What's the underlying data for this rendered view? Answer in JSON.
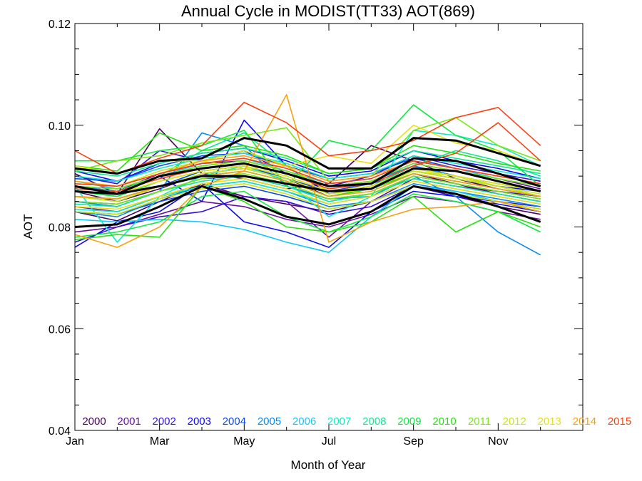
{
  "chart_data": {
    "type": "line",
    "title": "Annual Cycle in MODIST(TT33) AOT(869)",
    "xlabel": "Month of Year",
    "ylabel": "AOT",
    "x": [
      1,
      2,
      3,
      4,
      5,
      6,
      7,
      8,
      9,
      10,
      11,
      12
    ],
    "xlim": [
      1,
      13
    ],
    "ylim": [
      0.04,
      0.12
    ],
    "x_ticks": [
      {
        "value": 1,
        "label": "Jan"
      },
      {
        "value": 3,
        "label": "Mar"
      },
      {
        "value": 5,
        "label": "May"
      },
      {
        "value": 7,
        "label": "Jul"
      },
      {
        "value": 9,
        "label": "Sep"
      },
      {
        "value": 11,
        "label": "Nov"
      }
    ],
    "y_ticks": [
      {
        "value": 0.04,
        "label": "0.04"
      },
      {
        "value": 0.06,
        "label": "0.06"
      },
      {
        "value": 0.08,
        "label": "0.08"
      },
      {
        "value": 0.1,
        "label": "0.10"
      },
      {
        "value": 0.12,
        "label": "0.12"
      }
    ],
    "y_minor_step": 0.005,
    "legend_placement": "bottom",
    "series": [
      {
        "name": "2000",
        "color": "#4b0060",
        "lines": [
          [
            0.0905,
            0.0865,
            0.0993,
            0.0905,
            0.0895,
            0.0875,
            0.0885,
            0.096,
            0.093,
            0.0895,
            0.0875,
            0.086
          ],
          [
            0.083,
            0.0812,
            0.085,
            0.0885,
            0.086,
            0.0845,
            0.083,
            0.085,
            0.088,
            0.086,
            0.084,
            0.0825
          ],
          [
            0.087,
            0.085,
            0.0875,
            0.0905,
            0.0915,
            0.0895,
            0.086,
            0.0875,
            0.0905,
            0.0885,
            0.0865,
            0.085
          ]
        ]
      },
      {
        "name": "2001",
        "color": "#6a0fa0",
        "lines": [
          [
            0.084,
            0.083,
            0.086,
            0.088,
            0.086,
            0.085,
            0.078,
            0.085,
            0.0895,
            0.088,
            0.087,
            0.0855
          ],
          [
            0.088,
            0.087,
            0.0905,
            0.0925,
            0.093,
            0.091,
            0.088,
            0.089,
            0.0925,
            0.091,
            0.0895,
            0.0875
          ],
          [
            0.079,
            0.08,
            0.0825,
            0.085,
            0.084,
            0.0815,
            0.08,
            0.0825,
            0.086,
            0.085,
            0.083,
            0.0815
          ]
        ]
      },
      {
        "name": "2002",
        "color": "#3a10d8",
        "lines": [
          [
            0.077,
            0.08,
            0.082,
            0.083,
            0.086,
            0.085,
            0.0825,
            0.084,
            0.088,
            0.086,
            0.085,
            0.084
          ],
          [
            0.09,
            0.0885,
            0.095,
            0.093,
            0.095,
            0.0905,
            0.088,
            0.09,
            0.094,
            0.092,
            0.0905,
            0.089
          ],
          [
            0.085,
            0.0845,
            0.087,
            0.0895,
            0.09,
            0.088,
            0.0855,
            0.0865,
            0.09,
            0.0885,
            0.087,
            0.086
          ]
        ]
      },
      {
        "name": "2003",
        "color": "#0a0af0",
        "lines": [
          [
            0.076,
            0.081,
            0.083,
            0.0885,
            0.081,
            0.079,
            0.076,
            0.083,
            0.087,
            0.086,
            0.0845,
            0.083
          ],
          [
            0.088,
            0.0875,
            0.09,
            0.085,
            0.101,
            0.092,
            0.0865,
            0.088,
            0.092,
            0.09,
            0.088,
            0.087
          ],
          [
            0.091,
            0.089,
            0.0925,
            0.0945,
            0.0955,
            0.093,
            0.09,
            0.091,
            0.095,
            0.093,
            0.0915,
            0.0895
          ]
        ]
      },
      {
        "name": "2004",
        "color": "#0a4af5",
        "lines": [
          [
            0.086,
            0.0855,
            0.088,
            0.091,
            0.092,
            0.0895,
            0.087,
            0.0885,
            0.091,
            0.0895,
            0.088,
            0.086
          ],
          [
            0.083,
            0.0825,
            0.085,
            0.087,
            0.088,
            0.086,
            0.0835,
            0.085,
            0.088,
            0.0865,
            0.085,
            0.0835
          ],
          [
            0.0895,
            0.089,
            0.092,
            0.094,
            0.0945,
            0.092,
            0.0895,
            0.0905,
            0.0935,
            0.0915,
            0.09,
            0.0885
          ]
        ]
      },
      {
        "name": "2005",
        "color": "#0a8af0",
        "lines": [
          [
            0.085,
            0.084,
            0.087,
            0.0985,
            0.096,
            0.088,
            0.0855,
            0.086,
            0.09,
            0.086,
            0.079,
            0.0745
          ],
          [
            0.088,
            0.087,
            0.09,
            0.092,
            0.093,
            0.091,
            0.088,
            0.089,
            0.092,
            0.09,
            0.0885,
            0.087
          ],
          [
            0.083,
            0.082,
            0.0855,
            0.088,
            0.089,
            0.087,
            0.084,
            0.085,
            0.0885,
            0.087,
            0.0855,
            0.084
          ]
        ]
      },
      {
        "name": "2006",
        "color": "#10c8f8",
        "lines": [
          [
            0.0815,
            0.081,
            0.0815,
            0.081,
            0.0795,
            0.077,
            0.075,
            0.082,
            0.088,
            0.087,
            0.085,
            0.083
          ],
          [
            0.089,
            0.0875,
            0.09,
            0.0925,
            0.0935,
            0.091,
            0.0885,
            0.0895,
            0.093,
            0.0915,
            0.0895,
            0.088
          ],
          [
            0.086,
            0.085,
            0.088,
            0.09,
            0.091,
            0.089,
            0.086,
            0.0875,
            0.0905,
            0.089,
            0.0875,
            0.086
          ]
        ]
      },
      {
        "name": "2007",
        "color": "#10e8c8",
        "lines": [
          [
            0.088,
            0.077,
            0.086,
            0.09,
            0.092,
            0.089,
            0.082,
            0.086,
            0.099,
            0.098,
            0.096,
            0.092
          ],
          [
            0.09,
            0.089,
            0.0915,
            0.0935,
            0.0945,
            0.0925,
            0.0895,
            0.0905,
            0.094,
            0.0925,
            0.091,
            0.0895
          ],
          [
            0.0835,
            0.083,
            0.086,
            0.088,
            0.089,
            0.087,
            0.0845,
            0.086,
            0.089,
            0.0875,
            0.086,
            0.0845
          ]
        ]
      },
      {
        "name": "2008",
        "color": "#10e890",
        "lines": [
          [
            0.0875,
            0.087,
            0.09,
            0.095,
            0.0985,
            0.092,
            0.087,
            0.088,
            0.092,
            0.095,
            0.093,
            0.09
          ],
          [
            0.0845,
            0.084,
            0.087,
            0.089,
            0.09,
            0.088,
            0.085,
            0.0865,
            0.0895,
            0.088,
            0.0865,
            0.085
          ],
          [
            0.091,
            0.09,
            0.0925,
            0.0945,
            0.0955,
            0.0935,
            0.0905,
            0.0915,
            0.095,
            0.0935,
            0.092,
            0.0905
          ]
        ]
      },
      {
        "name": "2009",
        "color": "#10e840",
        "lines": [
          [
            0.093,
            0.093,
            0.095,
            0.096,
            0.099,
            0.088,
            0.097,
            0.095,
            0.104,
            0.098,
            0.095,
            0.088
          ],
          [
            0.078,
            0.079,
            0.081,
            0.086,
            0.087,
            0.082,
            0.079,
            0.082,
            0.0865,
            0.085,
            0.083,
            0.079
          ],
          [
            0.087,
            0.086,
            0.089,
            0.091,
            0.092,
            0.09,
            0.087,
            0.088,
            0.0915,
            0.09,
            0.0885,
            0.087
          ]
        ]
      },
      {
        "name": "2010",
        "color": "#28e010",
        "lines": [
          [
            0.0775,
            0.0785,
            0.078,
            0.088,
            0.085,
            0.08,
            0.079,
            0.081,
            0.086,
            0.079,
            0.083,
            0.08
          ],
          [
            0.086,
            0.0855,
            0.088,
            0.09,
            0.091,
            0.089,
            0.086,
            0.0875,
            0.0905,
            0.089,
            0.0875,
            0.086
          ],
          [
            0.092,
            0.091,
            0.0985,
            0.095,
            0.096,
            0.094,
            0.0905,
            0.0915,
            0.096,
            0.0945,
            0.0925,
            0.091
          ]
        ]
      },
      {
        "name": "2011",
        "color": "#78e810",
        "lines": [
          [
            0.091,
            0.093,
            0.094,
            0.0965,
            0.098,
            0.0995,
            0.089,
            0.09,
            0.099,
            0.1015,
            0.096,
            0.093
          ],
          [
            0.088,
            0.0875,
            0.09,
            0.092,
            0.093,
            0.091,
            0.088,
            0.089,
            0.0925,
            0.091,
            0.0895,
            0.088
          ],
          [
            0.085,
            0.0845,
            0.087,
            0.0895,
            0.0905,
            0.0885,
            0.0855,
            0.0865,
            0.09,
            0.0885,
            0.087,
            0.0855
          ]
        ]
      },
      {
        "name": "2012",
        "color": "#c8e810",
        "lines": [
          [
            0.089,
            0.088,
            0.091,
            0.093,
            0.095,
            0.092,
            0.087,
            0.088,
            0.091,
            0.09,
            0.088,
            0.086
          ],
          [
            0.086,
            0.085,
            0.088,
            0.0905,
            0.0915,
            0.0895,
            0.0865,
            0.0875,
            0.091,
            0.0895,
            0.088,
            0.0865
          ],
          [
            0.083,
            0.0825,
            0.0855,
            0.0875,
            0.0885,
            0.0865,
            0.0835,
            0.085,
            0.088,
            0.0865,
            0.085,
            0.0835
          ]
        ]
      },
      {
        "name": "2013",
        "color": "#e8e010",
        "lines": [
          [
            0.092,
            0.0905,
            0.093,
            0.093,
            0.0915,
            0.092,
            0.094,
            0.0925,
            0.1,
            0.0965,
            0.095,
            0.092
          ],
          [
            0.087,
            0.0865,
            0.089,
            0.091,
            0.092,
            0.09,
            0.087,
            0.088,
            0.0915,
            0.09,
            0.0885,
            0.087
          ],
          [
            0.084,
            0.0835,
            0.086,
            0.0885,
            0.0895,
            0.0875,
            0.0845,
            0.086,
            0.089,
            0.0875,
            0.086,
            0.0845
          ]
        ]
      },
      {
        "name": "2014",
        "color": "#f8a010",
        "lines": [
          [
            0.0785,
            0.076,
            0.08,
            0.088,
            0.091,
            0.106,
            0.077,
            0.081,
            0.0835,
            0.084,
            0.085,
            0.083
          ],
          [
            0.089,
            0.088,
            0.0905,
            0.093,
            0.094,
            0.092,
            0.089,
            0.09,
            0.093,
            0.0915,
            0.09,
            0.0885
          ],
          [
            0.086,
            0.0855,
            0.088,
            0.09,
            0.091,
            0.089,
            0.086,
            0.087,
            0.0905,
            0.089,
            0.0875,
            0.086
          ]
        ]
      },
      {
        "name": "2015",
        "color": "#f84010",
        "lines": [
          [
            0.095,
            0.0905,
            0.0935,
            0.096,
            0.1045,
            0.1005,
            0.094,
            0.095,
            0.097,
            0.1015,
            0.1035,
            0.096
          ],
          [
            0.0875,
            0.087,
            0.0895,
            0.0915,
            0.0925,
            0.0905,
            0.0875,
            0.0885,
            0.092,
            0.0945,
            0.1005,
            0.093
          ],
          [
            0.0885,
            0.088,
            0.0905,
            0.0925,
            0.0935,
            0.0915,
            0.0885,
            0.0895,
            0.093,
            0.0915,
            0.09,
            0.0885
          ]
        ]
      },
      {
        "color": "#000000",
        "width": 3,
        "lines": [
          [
            0.0915,
            0.0905,
            0.093,
            0.0935,
            0.0975,
            0.096,
            0.0915,
            0.0915,
            0.0975,
            0.097,
            0.0945,
            0.092
          ],
          [
            0.088,
            0.0865,
            0.09,
            0.0915,
            0.0925,
            0.0905,
            0.088,
            0.0885,
            0.0935,
            0.093,
            0.0905,
            0.088
          ],
          [
            0.087,
            0.0865,
            0.088,
            0.09,
            0.09,
            0.0885,
            0.087,
            0.0875,
            0.0915,
            0.091,
            0.089,
            0.087
          ],
          [
            0.08,
            0.0805,
            0.084,
            0.088,
            0.0855,
            0.082,
            0.0805,
            0.083,
            0.088,
            0.0865,
            0.084,
            0.081
          ]
        ]
      }
    ]
  }
}
